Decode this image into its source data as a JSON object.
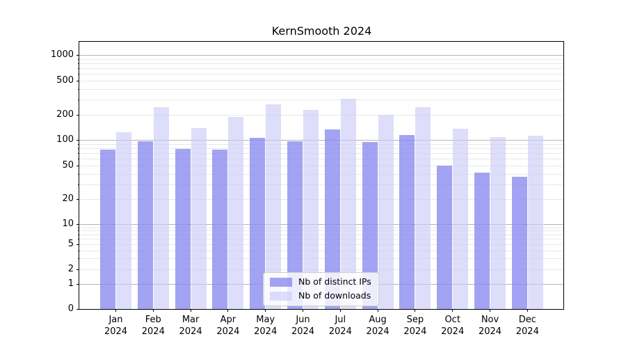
{
  "title": "KernSmooth 2024",
  "chart_data": {
    "type": "bar",
    "title": "KernSmooth 2024",
    "categories": [
      "Jan 2024",
      "Feb 2024",
      "Mar 2024",
      "Apr 2024",
      "May 2024",
      "Jun 2024",
      "Jul 2024",
      "Aug 2024",
      "Sep 2024",
      "Oct 2024",
      "Nov 2024",
      "Dec 2024"
    ],
    "series": [
      {
        "name": "Nb of distinct IPs",
        "color": "#8989f0",
        "alpha": 0.78,
        "values": [
          77,
          96,
          78,
          77,
          107,
          96,
          135,
          95,
          115,
          50,
          41,
          37
        ]
      },
      {
        "name": "Nb of downloads",
        "color": "#cdcdf8",
        "alpha": 0.66,
        "values": [
          124,
          245,
          140,
          190,
          265,
          230,
          310,
          202,
          248,
          136,
          108,
          113
        ]
      }
    ],
    "xlabel": "",
    "ylabel": "",
    "yscale": "symlog",
    "ylim": [
      0,
      1400
    ],
    "yticks": [
      0,
      1,
      2,
      5,
      10,
      20,
      50,
      100,
      200,
      500,
      1000
    ],
    "yticks_minor": [
      3,
      4,
      6,
      7,
      8,
      9,
      30,
      40,
      60,
      70,
      80,
      90,
      300,
      400,
      600,
      700,
      800,
      900
    ],
    "grid": true,
    "legend_position": "lower center"
  },
  "colors": {
    "background": "#ffffff",
    "axis": "#000000",
    "grid_major": "#b4b4b4",
    "grid_minor": "#e8e8e8",
    "legend_border": "#cccccc",
    "legend_background": "#ffffff"
  }
}
